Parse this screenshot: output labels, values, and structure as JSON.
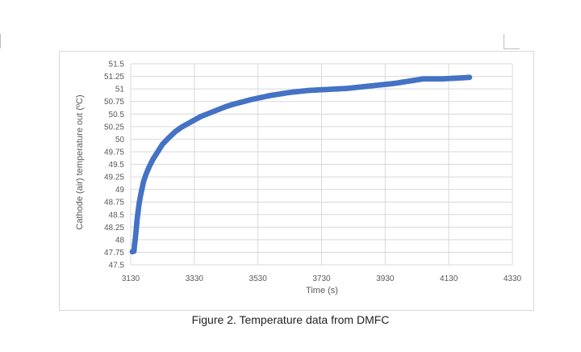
{
  "caption": "Figure 2. Temperature data from DMFC",
  "chart_data": {
    "type": "scatter",
    "title": "",
    "xlabel": "Time (s)",
    "ylabel": "Cathode (air) temperature out (ºC)",
    "xlim": [
      3130,
      4330
    ],
    "ylim": [
      47.5,
      51.5
    ],
    "x_ticks": [
      "3130",
      "3330",
      "3530",
      "3730",
      "3930",
      "4130",
      "4330"
    ],
    "y_ticks": [
      "47.5",
      "47.75",
      "48",
      "48.25",
      "48.5",
      "48.75",
      "49",
      "49.25",
      "49.5",
      "49.75",
      "50",
      "50.25",
      "50.5",
      "50.75",
      "51",
      "51.25",
      "51.5"
    ],
    "grid": true,
    "series": [
      {
        "color": "#4472c4",
        "x": [
          3135,
          3140,
          3141,
          3142,
          3144,
          3146,
          3148,
          3150,
          3153,
          3156,
          3160,
          3165,
          3170,
          3178,
          3188,
          3200,
          3215,
          3230,
          3250,
          3270,
          3290,
          3310,
          3330,
          3350,
          3370,
          3390,
          3410,
          3430,
          3450,
          3480,
          3510,
          3540,
          3570,
          3600,
          3630,
          3660,
          3690,
          3720,
          3750,
          3780,
          3810,
          3840,
          3870,
          3900,
          3930,
          3960,
          3990,
          4020,
          4050,
          4080,
          4110,
          4140,
          4170,
          4195
        ],
        "values": [
          47.76,
          47.77,
          47.82,
          47.9,
          48.0,
          48.12,
          48.25,
          48.4,
          48.55,
          48.7,
          48.85,
          49.0,
          49.15,
          49.3,
          49.45,
          49.6,
          49.75,
          49.9,
          50.03,
          50.15,
          50.24,
          50.31,
          50.38,
          50.45,
          50.5,
          50.55,
          50.6,
          50.65,
          50.69,
          50.74,
          50.79,
          50.83,
          50.87,
          50.9,
          50.93,
          50.95,
          50.97,
          50.98,
          50.99,
          51.0,
          51.01,
          51.03,
          51.05,
          51.07,
          51.09,
          51.11,
          51.14,
          51.17,
          51.2,
          51.2,
          51.2,
          51.21,
          51.22,
          51.23
        ]
      }
    ]
  }
}
